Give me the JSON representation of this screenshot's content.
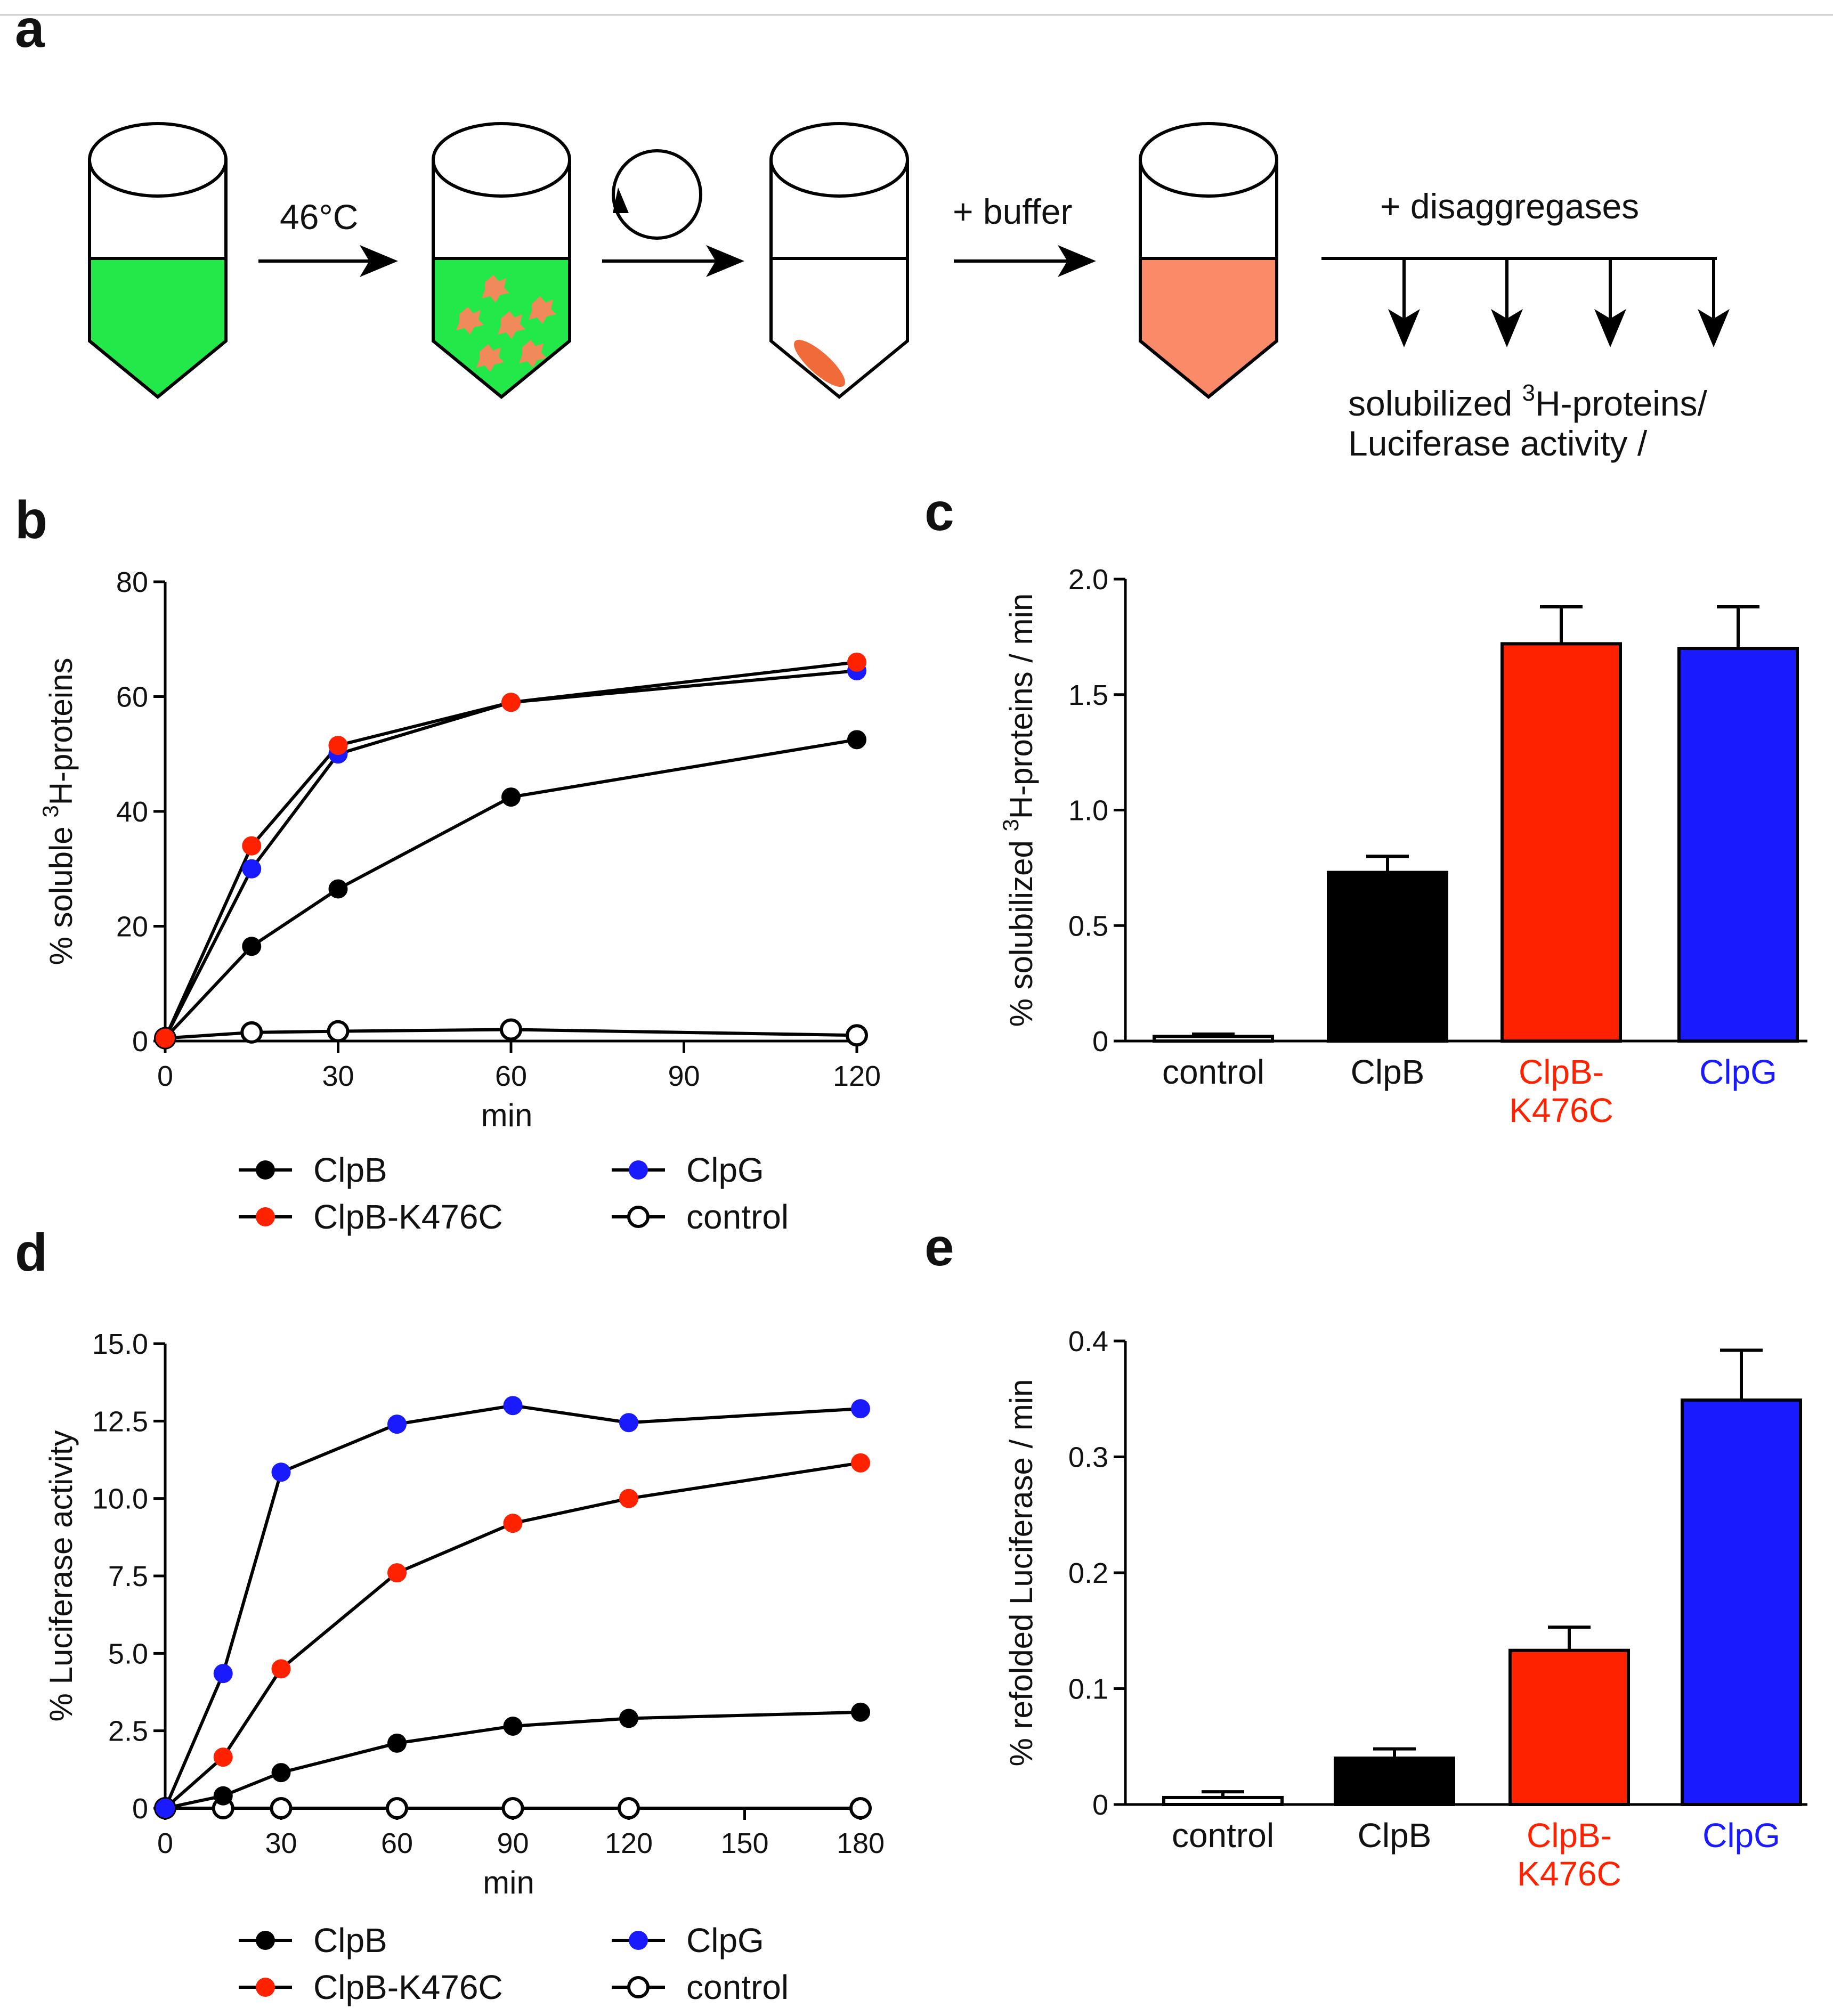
{
  "panel_a": {
    "label": "a",
    "step1": "46°C",
    "step3": "+ buffer",
    "step4": "+ disaggregases",
    "readout_line1_pre": "solubilized ",
    "readout_line1_sup": "3",
    "readout_line1_post": "H-proteins/",
    "readout_line2": "Luciferase activity /"
  },
  "panel_labels": {
    "b": "b",
    "c": "c",
    "d": "d",
    "e": "e"
  },
  "colors": {
    "ClpB": "#000000",
    "ClpB-K476C": "#ff2200",
    "ClpG": "#1a1aff",
    "control": "#ffffff",
    "tube_green": "#22e84a",
    "tube_salmon": "#fa8a68",
    "pellet": "#f06a3a",
    "aggregate": "#f08a5a"
  },
  "chart_data": [
    {
      "id": "b",
      "type": "line",
      "title": "",
      "xlabel": "min",
      "ylabel_pre": "% soluble ",
      "ylabel_sup": "3",
      "ylabel_post": "H-proteins",
      "xlim": [
        0,
        120
      ],
      "ylim": [
        0,
        80
      ],
      "xticks": [
        0,
        30,
        60,
        90,
        120
      ],
      "yticks": [
        0,
        20,
        40,
        60,
        80
      ],
      "series": [
        {
          "name": "control",
          "x": [
            0,
            15,
            30,
            60,
            120
          ],
          "values": [
            0.5,
            1.5,
            1.7,
            2.0,
            1.0
          ]
        },
        {
          "name": "ClpB",
          "x": [
            0,
            15,
            30,
            60,
            120
          ],
          "values": [
            0.5,
            16.5,
            26.5,
            42.5,
            52.5
          ]
        },
        {
          "name": "ClpG",
          "x": [
            0,
            15,
            30,
            60,
            120
          ],
          "values": [
            0.5,
            30,
            50,
            59,
            64.5
          ]
        },
        {
          "name": "ClpB-K476C",
          "x": [
            0,
            15,
            30,
            60,
            120
          ],
          "values": [
            0.5,
            34,
            51.5,
            59,
            66
          ]
        }
      ],
      "legend": [
        "ClpB",
        "ClpB-K476C",
        "ClpG",
        "control"
      ]
    },
    {
      "id": "c",
      "type": "bar",
      "categories": [
        "control",
        "ClpB",
        "ClpB-\nK476C",
        "ClpG"
      ],
      "category_lines": [
        [
          "control"
        ],
        [
          "ClpB"
        ],
        [
          "ClpB-",
          "K476C"
        ],
        [
          "ClpG"
        ]
      ],
      "series_keys": [
        "control",
        "ClpB",
        "ClpB-K476C",
        "ClpG"
      ],
      "values": [
        0.02,
        0.73,
        1.72,
        1.7
      ],
      "errors": [
        0.01,
        0.07,
        0.16,
        0.18
      ],
      "ylabel_pre": "% solubilized ",
      "ylabel_sup": "3",
      "ylabel_post": "H-proteins / min",
      "ylim": [
        0,
        2.0
      ],
      "yticks": [
        "0",
        "0.5",
        "1.0",
        "1.5",
        "2.0"
      ],
      "ytick_values": [
        0,
        0.5,
        1.0,
        1.5,
        2.0
      ]
    },
    {
      "id": "d",
      "type": "line",
      "xlabel": "min",
      "ylabel": "% Luciferase activity",
      "xlim": [
        0,
        180
      ],
      "ylim": [
        0,
        15
      ],
      "xticks": [
        0,
        30,
        60,
        90,
        120,
        150,
        180
      ],
      "yticks": [
        "0",
        "2.5",
        "5.0",
        "7.5",
        "10.0",
        "12.5",
        "15.0"
      ],
      "ytick_values": [
        0,
        2.5,
        5.0,
        7.5,
        10.0,
        12.5,
        15.0
      ],
      "series": [
        {
          "name": "control",
          "x": [
            0,
            15,
            30,
            60,
            90,
            120,
            180
          ],
          "values": [
            0,
            0,
            0,
            0,
            0,
            0,
            0
          ]
        },
        {
          "name": "ClpB",
          "x": [
            0,
            15,
            30,
            60,
            90,
            120,
            180
          ],
          "values": [
            0,
            0.4,
            1.15,
            2.1,
            2.65,
            2.9,
            3.1
          ]
        },
        {
          "name": "ClpB-K476C",
          "x": [
            0,
            15,
            30,
            60,
            90,
            120,
            180
          ],
          "values": [
            0,
            1.65,
            4.5,
            7.6,
            9.2,
            10.0,
            11.15
          ]
        },
        {
          "name": "ClpG",
          "x": [
            0,
            15,
            30,
            60,
            90,
            120,
            180
          ],
          "values": [
            0,
            4.35,
            10.85,
            12.4,
            13.0,
            12.45,
            12.9
          ]
        }
      ],
      "legend": [
        "ClpB",
        "ClpB-K476C",
        "ClpG",
        "control"
      ]
    },
    {
      "id": "e",
      "type": "bar",
      "categories": [
        "control",
        "ClpB",
        "ClpB-\nK476C",
        "ClpG"
      ],
      "category_lines": [
        [
          "control"
        ],
        [
          "ClpB"
        ],
        [
          "ClpB-",
          "K476C"
        ],
        [
          "ClpG"
        ]
      ],
      "series_keys": [
        "control",
        "ClpB",
        "ClpB-K476C",
        "ClpG"
      ],
      "values": [
        0.006,
        0.04,
        0.133,
        0.349
      ],
      "errors": [
        0.005,
        0.008,
        0.02,
        0.043
      ],
      "ylabel": "% refolded Luciferase / min",
      "ylim": [
        0,
        0.4
      ],
      "yticks": [
        "0",
        "0.1",
        "0.2",
        "0.3",
        "0.4"
      ],
      "ytick_values": [
        0,
        0.1,
        0.2,
        0.3,
        0.4
      ]
    }
  ]
}
